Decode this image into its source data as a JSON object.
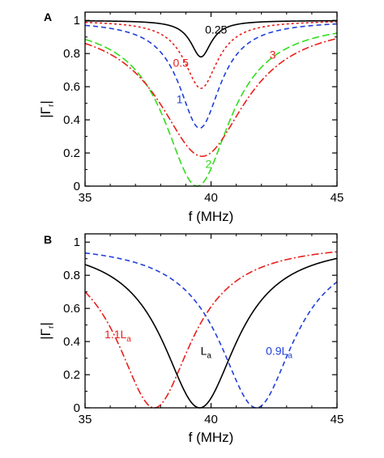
{
  "chart_data": [
    {
      "panel": "A",
      "type": "line",
      "xlabel": "f (MHz)",
      "ylabel": "|Γ",
      "ylabel_sub": "r",
      "ylabel_close": "|",
      "xlim": [
        35,
        45
      ],
      "ylim": [
        0,
        1.05
      ],
      "xticks": [
        "35",
        "40",
        "45"
      ],
      "yticks": [
        "0",
        "0.2",
        "0.4",
        "0.6",
        "0.8",
        "1"
      ],
      "series": [
        {
          "name": "0.25",
          "color": "#000000",
          "dash": "solid",
          "f0": 39.6,
          "min": 0.78,
          "width": 0.5,
          "label_text": "0.25",
          "label_x": 40.2,
          "label_y": 0.92
        },
        {
          "name": "0.5",
          "color": "#e8201c",
          "dash": "dot",
          "f0": 39.6,
          "min": 0.59,
          "width": 0.8,
          "label_text": "0.5",
          "label_x": 38.8,
          "label_y": 0.72
        },
        {
          "name": "1",
          "color": "#1f3fdc",
          "dash": "dash",
          "f0": 39.55,
          "min": 0.35,
          "width": 1.0,
          "label_text": "1",
          "label_x": 38.75,
          "label_y": 0.5
        },
        {
          "name": "2",
          "color": "#33dd1e",
          "dash": "longdash",
          "f0": 39.45,
          "min": 0.0,
          "width": 1.6,
          "label_text": "2",
          "label_x": 39.9,
          "label_y": 0.11
        },
        {
          "name": "3",
          "color": "#e8201c",
          "dash": "dashdot",
          "f0": 39.65,
          "min": 0.18,
          "width": 2.1,
          "label_text": "3",
          "label_x": 42.45,
          "label_y": 0.77
        }
      ]
    },
    {
      "panel": "B",
      "type": "line",
      "xlabel": "f (MHz)",
      "ylabel": "|Γ",
      "ylabel_sub": "r",
      "ylabel_close": "|",
      "xlim": [
        35,
        45
      ],
      "ylim": [
        0,
        1.05
      ],
      "xticks": [
        "35",
        "40",
        "45"
      ],
      "yticks": [
        "0",
        "0.2",
        "0.4",
        "0.6",
        "0.8",
        "1"
      ],
      "series": [
        {
          "name": "1.1La",
          "color": "#e8201c",
          "dash": "dashdot",
          "f0": 37.75,
          "min": 0.0,
          "width": 1.8,
          "label_text": "1.1L",
          "label_sub": "a",
          "label_x": 36.3,
          "label_y": 0.42
        },
        {
          "name": "La",
          "color": "#000000",
          "dash": "solid",
          "f0": 39.55,
          "min": 0.0,
          "width": 1.8,
          "label_text": "L",
          "label_sub": "a",
          "label_x": 39.8,
          "label_y": 0.32
        },
        {
          "name": "0.9La",
          "color": "#1f3fdc",
          "dash": "dash",
          "f0": 41.8,
          "min": 0.0,
          "width": 1.8,
          "label_text": "0.9L",
          "label_sub": "a",
          "label_x": 42.7,
          "label_y": 0.32
        }
      ]
    }
  ]
}
